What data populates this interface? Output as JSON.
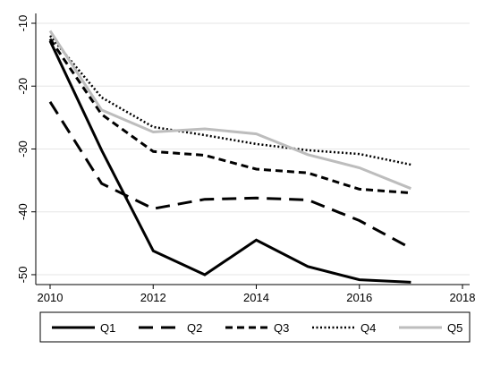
{
  "chart_data": {
    "type": "line",
    "title": "",
    "xlabel": "",
    "ylabel": "",
    "xlim": [
      2010,
      2018
    ],
    "ylim": [
      -52,
      -10
    ],
    "x_ticks": [
      2010,
      2012,
      2014,
      2016,
      2018
    ],
    "x_tick_labels": [
      "2010",
      "2012",
      "2014",
      "2016",
      "2018"
    ],
    "y_ticks": [
      -10,
      -20,
      -30,
      -40,
      -50
    ],
    "y_tick_labels": [
      "-10",
      "-20",
      "-30",
      "-40",
      "-50"
    ],
    "grid": "horizontal",
    "legend_placement": "bottom",
    "x": [
      2010,
      2011,
      2012,
      2013,
      2014,
      2015,
      2016,
      2017
    ],
    "series": [
      {
        "name": "Q1",
        "values": [
          -12.8,
          -30.2,
          -46.2,
          -50.0,
          -44.5,
          -48.7,
          -50.8,
          -51.2
        ],
        "color": "#000000",
        "dash": "solid",
        "width": 3
      },
      {
        "name": "Q2",
        "values": [
          -22.5,
          -35.5,
          -39.5,
          -38.0,
          -37.8,
          -38.1,
          -41.4,
          -45.8
        ],
        "color": "#000000",
        "dash": "long",
        "width": 3
      },
      {
        "name": "Q3",
        "values": [
          -12.5,
          -24.5,
          -30.4,
          -31.0,
          -33.2,
          -33.8,
          -36.4,
          -37.0
        ],
        "color": "#000000",
        "dash": "short",
        "width": 3
      },
      {
        "name": "Q4",
        "values": [
          -12.0,
          -21.8,
          -26.5,
          -27.8,
          -29.2,
          -30.2,
          -30.8,
          -32.5
        ],
        "color": "#000000",
        "dash": "dot",
        "width": 2.5
      },
      {
        "name": "Q5",
        "values": [
          -11.2,
          -23.8,
          -27.3,
          -26.8,
          -27.6,
          -30.9,
          -33.0,
          -36.3
        ],
        "color": "#bdbdbd",
        "dash": "solid",
        "width": 3
      }
    ]
  }
}
